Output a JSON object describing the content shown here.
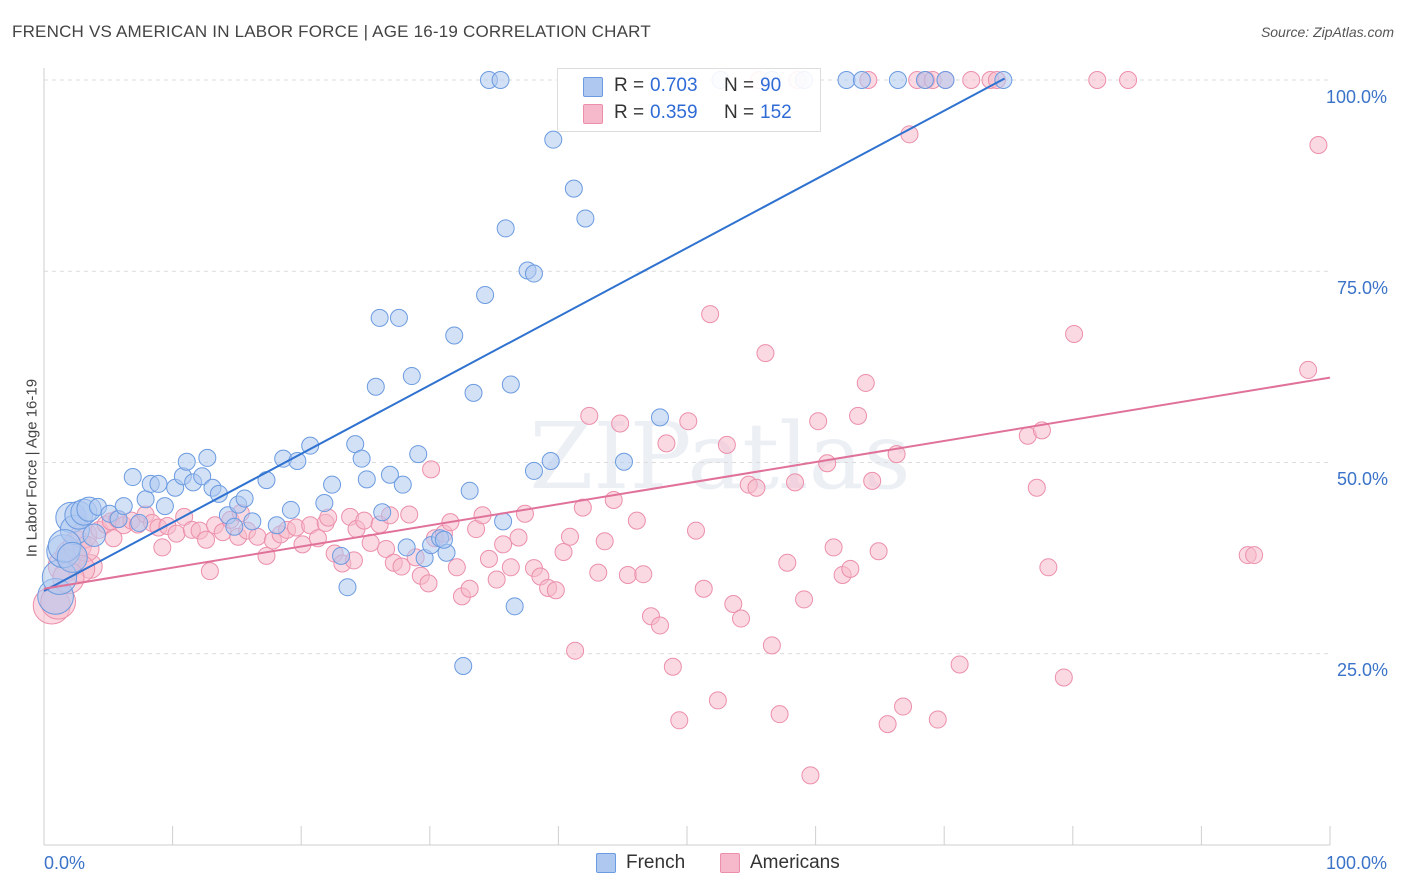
{
  "title": "FRENCH VS AMERICAN IN LABOR FORCE | AGE 16-19 CORRELATION CHART",
  "source": "Source: ZipAtlas.com",
  "watermark": "ZIPatlas",
  "colors": {
    "french_fill": "#aec8f0",
    "french_stroke": "#6b9be0",
    "french_line": "#2f72d0",
    "americans_fill": "#f6b9cb",
    "americans_stroke": "#ec8fab",
    "americans_line": "#e0729a",
    "tick_label": "#3b73c9",
    "grid": "#dcdcdc"
  },
  "legend_top": {
    "french": {
      "r_label": "R =",
      "r_value": "0.703",
      "n_label": "N =",
      "n_value": "90"
    },
    "americans": {
      "r_label": "R =",
      "r_value": "0.359",
      "n_label": "N =",
      "n_value": "152"
    }
  },
  "legend_bottom": {
    "french": "French",
    "americans": "Americans"
  },
  "chart_data": {
    "type": "scatter",
    "title": "FRENCH VS AMERICAN IN LABOR FORCE | AGE 16-19 CORRELATION CHART",
    "xlabel": "",
    "ylabel": "In Labor Force | Age 16-19",
    "xlim": [
      0,
      100
    ],
    "ylim": [
      0,
      102
    ],
    "x_tick_labels": [
      "0.0%",
      "100.0%"
    ],
    "y_tick_labels": [
      "25.0%",
      "50.0%",
      "75.0%",
      "100.0%"
    ],
    "y_ticks": [
      25,
      50,
      75,
      100
    ],
    "grid": true,
    "legend_position": "top-center",
    "series": [
      {
        "name": "French",
        "R": 0.703,
        "N": 90,
        "trendline": {
          "x": [
            0,
            74.7
          ],
          "y": [
            33.2,
            100.2
          ]
        },
        "points": [
          [
            0.9,
            32.5
          ],
          [
            1.2,
            35
          ],
          [
            1.5,
            38.4
          ],
          [
            2.1,
            42.8
          ],
          [
            2.4,
            41.2
          ],
          [
            2.7,
            43.1
          ],
          [
            3.1,
            43.5
          ],
          [
            3.5,
            43.9
          ],
          [
            4.2,
            44.2
          ],
          [
            5.1,
            43.3
          ],
          [
            5.8,
            42.6
          ],
          [
            6.2,
            44.3
          ],
          [
            6.9,
            48.1
          ],
          [
            7.4,
            42.1
          ],
          [
            7.9,
            45.2
          ],
          [
            8.3,
            47.2
          ],
          [
            8.9,
            47.2
          ],
          [
            9.4,
            44.3
          ],
          [
            10.2,
            46.7
          ],
          [
            10.8,
            48.2
          ],
          [
            11.1,
            50.1
          ],
          [
            11.6,
            47.4
          ],
          [
            12.3,
            48.2
          ],
          [
            12.7,
            50.6
          ],
          [
            13.1,
            46.7
          ],
          [
            13.6,
            45.9
          ],
          [
            14.3,
            43.1
          ],
          [
            14.8,
            41.6
          ],
          [
            15.1,
            44.5
          ],
          [
            15.6,
            45.3
          ],
          [
            16.2,
            42.3
          ],
          [
            17.3,
            47.7
          ],
          [
            18.1,
            41.8
          ],
          [
            18.6,
            50.5
          ],
          [
            19.2,
            43.8
          ],
          [
            19.7,
            50.2
          ],
          [
            20.7,
            52.2
          ],
          [
            21.8,
            44.7
          ],
          [
            22.4,
            47.1
          ],
          [
            23.1,
            37.8
          ],
          [
            23.6,
            33.7
          ],
          [
            24.2,
            52.4
          ],
          [
            24.7,
            50.5
          ],
          [
            25.1,
            47.8
          ],
          [
            25.8,
            59.9
          ],
          [
            26.1,
            68.9
          ],
          [
            26.3,
            43.5
          ],
          [
            26.9,
            48.4
          ],
          [
            27.6,
            68.9
          ],
          [
            27.9,
            47.1
          ],
          [
            28.2,
            38.9
          ],
          [
            28.6,
            61.3
          ],
          [
            29.1,
            51.1
          ],
          [
            29.6,
            37.5
          ],
          [
            30.1,
            39.2
          ],
          [
            30.8,
            40.1
          ],
          [
            31.3,
            38.2
          ],
          [
            31.1,
            39.9
          ],
          [
            31.9,
            66.6
          ],
          [
            32.6,
            23.4
          ],
          [
            33.1,
            46.3
          ],
          [
            33.4,
            59.1
          ],
          [
            34.3,
            71.9
          ],
          [
            34.6,
            100
          ],
          [
            35.5,
            100
          ],
          [
            35.9,
            80.6
          ],
          [
            35.7,
            42.3
          ],
          [
            36.6,
            31.2
          ],
          [
            36.3,
            60.2
          ],
          [
            37.6,
            75.1
          ],
          [
            38.1,
            74.7
          ],
          [
            38.1,
            48.9
          ],
          [
            39.4,
            50.2
          ],
          [
            39.6,
            92.2
          ],
          [
            41.2,
            85.8
          ],
          [
            42.1,
            81.9
          ],
          [
            45.1,
            50.1
          ],
          [
            47.9,
            55.9
          ],
          [
            52.6,
            100
          ],
          [
            56.6,
            100
          ],
          [
            59.1,
            100
          ],
          [
            62.4,
            100
          ],
          [
            63.6,
            100
          ],
          [
            66.4,
            100
          ],
          [
            68.5,
            100
          ],
          [
            70.1,
            100
          ],
          [
            74.6,
            100
          ],
          [
            1.6,
            39.1
          ],
          [
            3.9,
            40.5
          ],
          [
            2.2,
            37.6
          ]
        ]
      },
      {
        "name": "Americans",
        "R": 0.359,
        "N": 152,
        "trendline": {
          "x": [
            0,
            100
          ],
          "y": [
            33.5,
            61.1
          ]
        },
        "points": [
          [
            0.6,
            31.3
          ],
          [
            1.1,
            31.8
          ],
          [
            1.6,
            36.5
          ],
          [
            2.1,
            37.9
          ],
          [
            2.6,
            39.2
          ],
          [
            3.1,
            40.5
          ],
          [
            3.6,
            36.4
          ],
          [
            4.3,
            41.2
          ],
          [
            4.8,
            41.9
          ],
          [
            5.2,
            42.3
          ],
          [
            5.7,
            42.6
          ],
          [
            6.2,
            41.8
          ],
          [
            6.8,
            42.4
          ],
          [
            7.3,
            41.9
          ],
          [
            7.9,
            43.2
          ],
          [
            8.4,
            42.1
          ],
          [
            8.9,
            41.5
          ],
          [
            9.6,
            41.7
          ],
          [
            10.3,
            40.7
          ],
          [
            10.9,
            42.9
          ],
          [
            11.5,
            41.2
          ],
          [
            12.1,
            41.1
          ],
          [
            12.6,
            39.9
          ],
          [
            13.3,
            41.8
          ],
          [
            13.9,
            40.9
          ],
          [
            14.5,
            42.5
          ],
          [
            15.1,
            40.3
          ],
          [
            15.8,
            41.1
          ],
          [
            16.6,
            40.3
          ],
          [
            17.3,
            37.8
          ],
          [
            17.8,
            39.8
          ],
          [
            18.4,
            40.6
          ],
          [
            18.9,
            41.2
          ],
          [
            19.6,
            41.5
          ],
          [
            20.1,
            39.3
          ],
          [
            20.7,
            41.8
          ],
          [
            21.3,
            40.1
          ],
          [
            21.9,
            42.1
          ],
          [
            22.6,
            38.1
          ],
          [
            23.2,
            36.8
          ],
          [
            23.8,
            42.9
          ],
          [
            24.3,
            41.3
          ],
          [
            24.9,
            42.4
          ],
          [
            25.4,
            39.5
          ],
          [
            26.1,
            41.9
          ],
          [
            26.6,
            38.7
          ],
          [
            27.2,
            36.9
          ],
          [
            27.8,
            36.4
          ],
          [
            28.4,
            43.2
          ],
          [
            28.9,
            37.6
          ],
          [
            29.3,
            35.2
          ],
          [
            29.9,
            34.2
          ],
          [
            30.4,
            40.1
          ],
          [
            31.1,
            40.7
          ],
          [
            31.6,
            42.2
          ],
          [
            32.1,
            36.3
          ],
          [
            32.5,
            32.5
          ],
          [
            33.1,
            33.5
          ],
          [
            33.6,
            41.3
          ],
          [
            34.1,
            43.1
          ],
          [
            34.6,
            37.4
          ],
          [
            35.2,
            34.7
          ],
          [
            35.7,
            39.3
          ],
          [
            36.3,
            36.3
          ],
          [
            36.9,
            40.2
          ],
          [
            37.4,
            43.3
          ],
          [
            38.1,
            36.2
          ],
          [
            38.6,
            35.1
          ],
          [
            39.2,
            33.6
          ],
          [
            39.8,
            33.3
          ],
          [
            40.4,
            38.3
          ],
          [
            40.9,
            40.3
          ],
          [
            41.3,
            25.4
          ],
          [
            41.9,
            44.1
          ],
          [
            42.4,
            56.1
          ],
          [
            43.1,
            35.6
          ],
          [
            43.6,
            39.7
          ],
          [
            44.3,
            45.1
          ],
          [
            44.8,
            55.1
          ],
          [
            45.4,
            35.3
          ],
          [
            46.1,
            42.4
          ],
          [
            46.6,
            35.4
          ],
          [
            47.2,
            29.9
          ],
          [
            47.9,
            28.7
          ],
          [
            48.4,
            52.5
          ],
          [
            48.9,
            23.3
          ],
          [
            49.4,
            16.3
          ],
          [
            50.1,
            55.4
          ],
          [
            50.7,
            41.1
          ],
          [
            51.3,
            33.5
          ],
          [
            51.8,
            69.4
          ],
          [
            52.4,
            18.9
          ],
          [
            53.1,
            52.3
          ],
          [
            53.6,
            31.5
          ],
          [
            54.2,
            29.6
          ],
          [
            54.8,
            47.1
          ],
          [
            55.4,
            46.7
          ],
          [
            56.1,
            64.3
          ],
          [
            56.6,
            26.1
          ],
          [
            57.2,
            17.1
          ],
          [
            57.8,
            36.9
          ],
          [
            58.4,
            47.4
          ],
          [
            59.1,
            32.1
          ],
          [
            59.6,
            9.1
          ],
          [
            60.2,
            55.4
          ],
          [
            60.9,
            49.9
          ],
          [
            61.4,
            38.9
          ],
          [
            62.1,
            35.3
          ],
          [
            62.7,
            36.1
          ],
          [
            63.3,
            56.1
          ],
          [
            63.9,
            60.4
          ],
          [
            64.4,
            47.6
          ],
          [
            64.9,
            38.4
          ],
          [
            65.6,
            15.8
          ],
          [
            66.3,
            51.1
          ],
          [
            66.8,
            18.1
          ],
          [
            67.3,
            92.9
          ],
          [
            67.9,
            100
          ],
          [
            68.6,
            100
          ],
          [
            69.1,
            100
          ],
          [
            69.5,
            16.4
          ],
          [
            70.1,
            100
          ],
          [
            71.2,
            23.6
          ],
          [
            72.1,
            100
          ],
          [
            73.6,
            100
          ],
          [
            74.1,
            100
          ],
          [
            76.5,
            53.5
          ],
          [
            77.2,
            46.7
          ],
          [
            77.6,
            54.2
          ],
          [
            78.1,
            36.3
          ],
          [
            79.3,
            21.9
          ],
          [
            80.1,
            66.8
          ],
          [
            81.9,
            100
          ],
          [
            84.3,
            100
          ],
          [
            93.6,
            37.9
          ],
          [
            94.1,
            37.9
          ],
          [
            98.3,
            62.1
          ],
          [
            99.1,
            91.5
          ],
          [
            64.1,
            100
          ],
          [
            55.6,
            100
          ],
          [
            58.6,
            100
          ],
          [
            26.9,
            43.1
          ],
          [
            24.1,
            37.2
          ],
          [
            22.1,
            42.8
          ],
          [
            15.3,
            43.4
          ],
          [
            9.2,
            38.9
          ],
          [
            12.9,
            35.8
          ],
          [
            5.4,
            40.1
          ],
          [
            3.3,
            38.7
          ],
          [
            2.9,
            36.1
          ],
          [
            1.9,
            34.9
          ],
          [
            30.1,
            49.1
          ]
        ]
      }
    ]
  }
}
